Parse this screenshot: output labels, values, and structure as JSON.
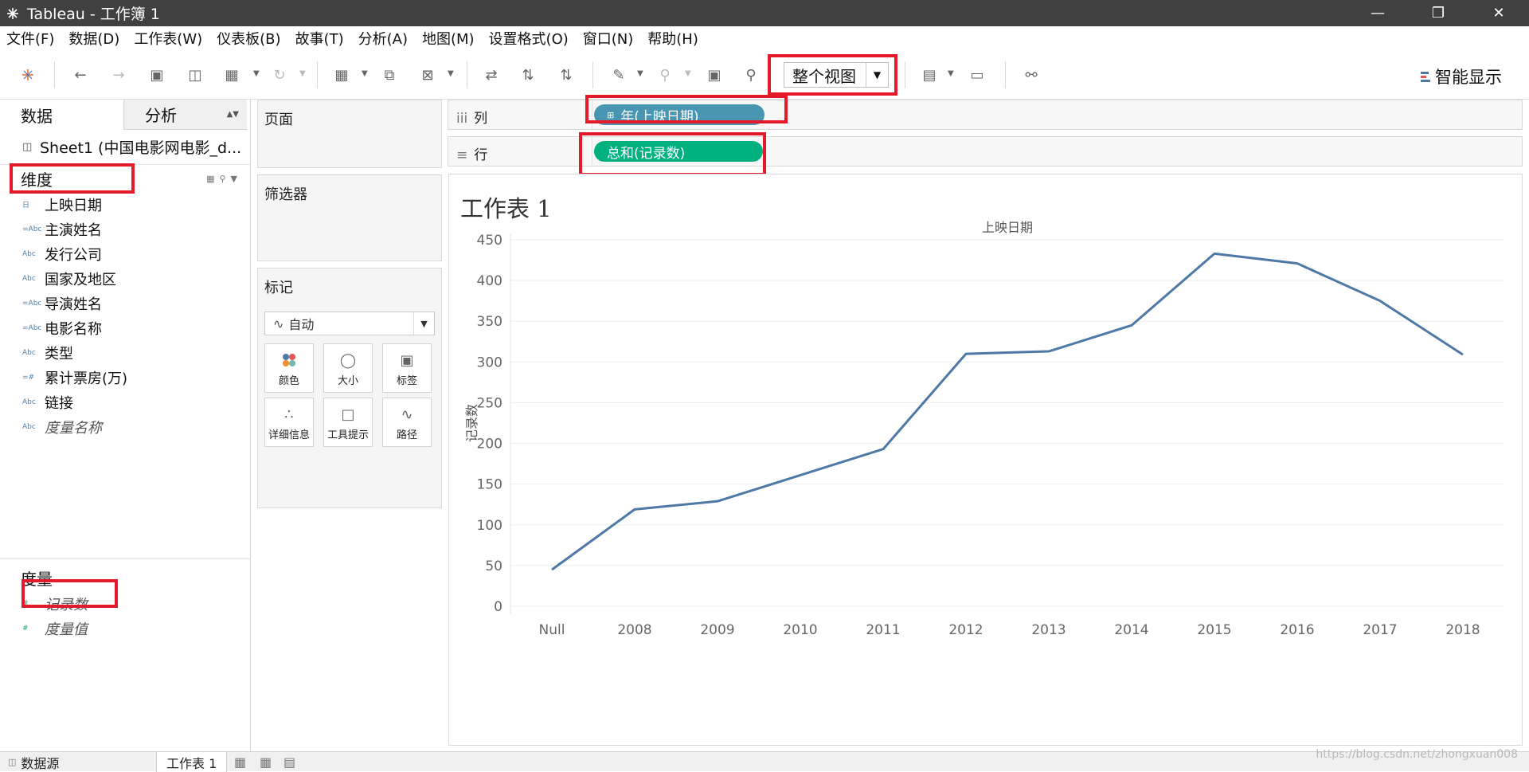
{
  "window": {
    "title": "Tableau - 工作簿 1"
  },
  "menu": [
    "文件(F)",
    "数据(D)",
    "工作表(W)",
    "仪表板(B)",
    "故事(T)",
    "分析(A)",
    "地图(M)",
    "设置格式(O)",
    "窗口(N)",
    "帮助(H)"
  ],
  "toolbar": {
    "view_select": "整个视图",
    "smart_show": "智能显示"
  },
  "datapane": {
    "tab_data": "数据",
    "tab_analysis": "分析",
    "datasource": "Sheet1 (中国电影网电影_d...",
    "dimensions_title": "维度",
    "dimensions": [
      {
        "label": "上映日期",
        "icon": "date-icon",
        "type": "日"
      },
      {
        "label": "主演姓名",
        "icon": "abc-icon",
        "type": "=Abc"
      },
      {
        "label": "发行公司",
        "icon": "abc-icon",
        "type": "Abc"
      },
      {
        "label": "国家及地区",
        "icon": "abc-icon",
        "type": "Abc"
      },
      {
        "label": "导演姓名",
        "icon": "abc-icon",
        "type": "=Abc"
      },
      {
        "label": "电影名称",
        "icon": "abc-icon",
        "type": "=Abc"
      },
      {
        "label": "类型",
        "icon": "abc-icon",
        "type": "Abc"
      },
      {
        "label": "累计票房(万)",
        "icon": "number-icon",
        "type": "=#"
      },
      {
        "label": "链接",
        "icon": "abc-icon",
        "type": "Abc"
      },
      {
        "label": "度量名称",
        "icon": "abc-icon",
        "type": "Abc"
      }
    ],
    "measures_title": "度量",
    "measures": [
      {
        "label": "记录数",
        "icon": "number-icon",
        "type": "#"
      },
      {
        "label": "度量值",
        "icon": "number-icon",
        "type": "#"
      }
    ]
  },
  "shelves": {
    "pages": "页面",
    "filters": "筛选器",
    "marks": "标记",
    "marks_type": "自动",
    "mark_buttons": [
      "颜色",
      "大小",
      "标签",
      "详细信息",
      "工具提示",
      "路径"
    ],
    "columns_label": "列",
    "rows_label": "行",
    "columns_pill": "年(上映日期)",
    "rows_pill": "总和(记录数)"
  },
  "sheet": {
    "title": "工作表 1"
  },
  "chart_data": {
    "type": "line",
    "title": "",
    "header": "上映日期",
    "xlabel": "",
    "ylabel": "记录数",
    "categories": [
      "Null",
      "2008",
      "2009",
      "2010",
      "2011",
      "2012",
      "2013",
      "2014",
      "2015",
      "2016",
      "2017",
      "2018"
    ],
    "values": [
      45,
      119,
      129,
      161,
      193,
      310,
      313,
      345,
      433,
      421,
      375,
      309
    ],
    "ylim": [
      0,
      450
    ],
    "yticks": [
      0,
      50,
      100,
      150,
      200,
      250,
      300,
      350,
      400,
      450
    ],
    "grid": true,
    "color": "#4e79a7"
  },
  "bottom_tabs": {
    "datasource": "数据源",
    "sheet": "工作表 1"
  },
  "watermark": "https://blog.csdn.net/zhongxuan008",
  "colors": {
    "columns_pill": "#4996b2",
    "rows_pill": "#00b180",
    "highlight": "#e5192c",
    "line": "#4e79a7"
  }
}
